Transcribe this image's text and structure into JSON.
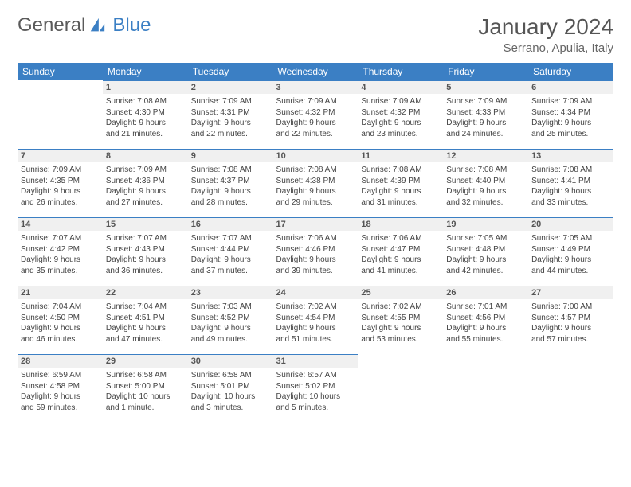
{
  "brand": {
    "part1": "General",
    "part2": "Blue"
  },
  "title": "January 2024",
  "location": "Serrano, Apulia, Italy",
  "colors": {
    "brand_blue": "#3b7fc4",
    "text_gray": "#555555",
    "header_bg": "#3b7fc4",
    "daynum_bg": "#f0f0f0",
    "cell_border": "#3b7fc4"
  },
  "weekdays": [
    "Sunday",
    "Monday",
    "Tuesday",
    "Wednesday",
    "Thursday",
    "Friday",
    "Saturday"
  ],
  "weeks": [
    [
      null,
      {
        "n": "1",
        "sr": "Sunrise: 7:08 AM",
        "ss": "Sunset: 4:30 PM",
        "d1": "Daylight: 9 hours",
        "d2": "and 21 minutes."
      },
      {
        "n": "2",
        "sr": "Sunrise: 7:09 AM",
        "ss": "Sunset: 4:31 PM",
        "d1": "Daylight: 9 hours",
        "d2": "and 22 minutes."
      },
      {
        "n": "3",
        "sr": "Sunrise: 7:09 AM",
        "ss": "Sunset: 4:32 PM",
        "d1": "Daylight: 9 hours",
        "d2": "and 22 minutes."
      },
      {
        "n": "4",
        "sr": "Sunrise: 7:09 AM",
        "ss": "Sunset: 4:32 PM",
        "d1": "Daylight: 9 hours",
        "d2": "and 23 minutes."
      },
      {
        "n": "5",
        "sr": "Sunrise: 7:09 AM",
        "ss": "Sunset: 4:33 PM",
        "d1": "Daylight: 9 hours",
        "d2": "and 24 minutes."
      },
      {
        "n": "6",
        "sr": "Sunrise: 7:09 AM",
        "ss": "Sunset: 4:34 PM",
        "d1": "Daylight: 9 hours",
        "d2": "and 25 minutes."
      }
    ],
    [
      {
        "n": "7",
        "sr": "Sunrise: 7:09 AM",
        "ss": "Sunset: 4:35 PM",
        "d1": "Daylight: 9 hours",
        "d2": "and 26 minutes."
      },
      {
        "n": "8",
        "sr": "Sunrise: 7:09 AM",
        "ss": "Sunset: 4:36 PM",
        "d1": "Daylight: 9 hours",
        "d2": "and 27 minutes."
      },
      {
        "n": "9",
        "sr": "Sunrise: 7:08 AM",
        "ss": "Sunset: 4:37 PM",
        "d1": "Daylight: 9 hours",
        "d2": "and 28 minutes."
      },
      {
        "n": "10",
        "sr": "Sunrise: 7:08 AM",
        "ss": "Sunset: 4:38 PM",
        "d1": "Daylight: 9 hours",
        "d2": "and 29 minutes."
      },
      {
        "n": "11",
        "sr": "Sunrise: 7:08 AM",
        "ss": "Sunset: 4:39 PM",
        "d1": "Daylight: 9 hours",
        "d2": "and 31 minutes."
      },
      {
        "n": "12",
        "sr": "Sunrise: 7:08 AM",
        "ss": "Sunset: 4:40 PM",
        "d1": "Daylight: 9 hours",
        "d2": "and 32 minutes."
      },
      {
        "n": "13",
        "sr": "Sunrise: 7:08 AM",
        "ss": "Sunset: 4:41 PM",
        "d1": "Daylight: 9 hours",
        "d2": "and 33 minutes."
      }
    ],
    [
      {
        "n": "14",
        "sr": "Sunrise: 7:07 AM",
        "ss": "Sunset: 4:42 PM",
        "d1": "Daylight: 9 hours",
        "d2": "and 35 minutes."
      },
      {
        "n": "15",
        "sr": "Sunrise: 7:07 AM",
        "ss": "Sunset: 4:43 PM",
        "d1": "Daylight: 9 hours",
        "d2": "and 36 minutes."
      },
      {
        "n": "16",
        "sr": "Sunrise: 7:07 AM",
        "ss": "Sunset: 4:44 PM",
        "d1": "Daylight: 9 hours",
        "d2": "and 37 minutes."
      },
      {
        "n": "17",
        "sr": "Sunrise: 7:06 AM",
        "ss": "Sunset: 4:46 PM",
        "d1": "Daylight: 9 hours",
        "d2": "and 39 minutes."
      },
      {
        "n": "18",
        "sr": "Sunrise: 7:06 AM",
        "ss": "Sunset: 4:47 PM",
        "d1": "Daylight: 9 hours",
        "d2": "and 41 minutes."
      },
      {
        "n": "19",
        "sr": "Sunrise: 7:05 AM",
        "ss": "Sunset: 4:48 PM",
        "d1": "Daylight: 9 hours",
        "d2": "and 42 minutes."
      },
      {
        "n": "20",
        "sr": "Sunrise: 7:05 AM",
        "ss": "Sunset: 4:49 PM",
        "d1": "Daylight: 9 hours",
        "d2": "and 44 minutes."
      }
    ],
    [
      {
        "n": "21",
        "sr": "Sunrise: 7:04 AM",
        "ss": "Sunset: 4:50 PM",
        "d1": "Daylight: 9 hours",
        "d2": "and 46 minutes."
      },
      {
        "n": "22",
        "sr": "Sunrise: 7:04 AM",
        "ss": "Sunset: 4:51 PM",
        "d1": "Daylight: 9 hours",
        "d2": "and 47 minutes."
      },
      {
        "n": "23",
        "sr": "Sunrise: 7:03 AM",
        "ss": "Sunset: 4:52 PM",
        "d1": "Daylight: 9 hours",
        "d2": "and 49 minutes."
      },
      {
        "n": "24",
        "sr": "Sunrise: 7:02 AM",
        "ss": "Sunset: 4:54 PM",
        "d1": "Daylight: 9 hours",
        "d2": "and 51 minutes."
      },
      {
        "n": "25",
        "sr": "Sunrise: 7:02 AM",
        "ss": "Sunset: 4:55 PM",
        "d1": "Daylight: 9 hours",
        "d2": "and 53 minutes."
      },
      {
        "n": "26",
        "sr": "Sunrise: 7:01 AM",
        "ss": "Sunset: 4:56 PM",
        "d1": "Daylight: 9 hours",
        "d2": "and 55 minutes."
      },
      {
        "n": "27",
        "sr": "Sunrise: 7:00 AM",
        "ss": "Sunset: 4:57 PM",
        "d1": "Daylight: 9 hours",
        "d2": "and 57 minutes."
      }
    ],
    [
      {
        "n": "28",
        "sr": "Sunrise: 6:59 AM",
        "ss": "Sunset: 4:58 PM",
        "d1": "Daylight: 9 hours",
        "d2": "and 59 minutes."
      },
      {
        "n": "29",
        "sr": "Sunrise: 6:58 AM",
        "ss": "Sunset: 5:00 PM",
        "d1": "Daylight: 10 hours",
        "d2": "and 1 minute."
      },
      {
        "n": "30",
        "sr": "Sunrise: 6:58 AM",
        "ss": "Sunset: 5:01 PM",
        "d1": "Daylight: 10 hours",
        "d2": "and 3 minutes."
      },
      {
        "n": "31",
        "sr": "Sunrise: 6:57 AM",
        "ss": "Sunset: 5:02 PM",
        "d1": "Daylight: 10 hours",
        "d2": "and 5 minutes."
      },
      null,
      null,
      null
    ]
  ]
}
